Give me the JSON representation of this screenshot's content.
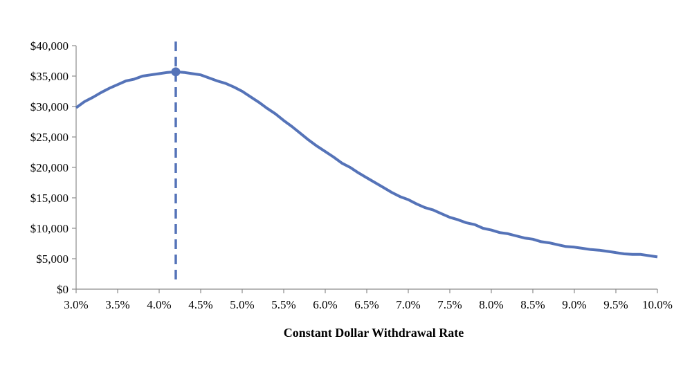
{
  "chart_data": {
    "type": "line",
    "title": "",
    "xlabel": "Constant Dollar Withdrawal Rate",
    "ylabel": "",
    "xlim": [
      3.0,
      10.0
    ],
    "ylim": [
      0,
      40000
    ],
    "grid": false,
    "legend": "none",
    "x_tick_labels": [
      "3.0%",
      "3.5%",
      "4.0%",
      "4.5%",
      "5.0%",
      "5.5%",
      "6.0%",
      "6.5%",
      "7.0%",
      "7.5%",
      "8.0%",
      "8.5%",
      "9.0%",
      "9.5%",
      "10.0%"
    ],
    "x_ticks": [
      3.0,
      3.5,
      4.0,
      4.5,
      5.0,
      5.5,
      6.0,
      6.5,
      7.0,
      7.5,
      8.0,
      8.5,
      9.0,
      9.5,
      10.0
    ],
    "y_tick_labels": [
      "$0",
      "$5,000",
      "$10,000",
      "$15,000",
      "$20,000",
      "$25,000",
      "$30,000",
      "$35,000",
      "$40,000"
    ],
    "y_ticks": [
      0,
      5000,
      10000,
      15000,
      20000,
      25000,
      30000,
      35000,
      40000
    ],
    "series_color": "#5573b8",
    "x": [
      3.0,
      3.1,
      3.2,
      3.3,
      3.4,
      3.5,
      3.6,
      3.7,
      3.8,
      3.9,
      4.0,
      4.1,
      4.2,
      4.3,
      4.4,
      4.5,
      4.6,
      4.7,
      4.8,
      4.9,
      5.0,
      5.1,
      5.2,
      5.3,
      5.4,
      5.5,
      5.6,
      5.7,
      5.8,
      5.9,
      6.0,
      6.1,
      6.2,
      6.3,
      6.4,
      6.5,
      6.6,
      6.7,
      6.8,
      6.9,
      7.0,
      7.1,
      7.2,
      7.3,
      7.4,
      7.5,
      7.6,
      7.7,
      7.8,
      7.9,
      8.0,
      8.1,
      8.2,
      8.3,
      8.4,
      8.5,
      8.6,
      8.7,
      8.8,
      8.9,
      9.0,
      9.1,
      9.2,
      9.3,
      9.4,
      9.5,
      9.6,
      9.7,
      9.8,
      9.9,
      10.0
    ],
    "series": [
      {
        "values": [
          29800,
          30800,
          31500,
          32300,
          33000,
          33600,
          34200,
          34500,
          35000,
          35200,
          35400,
          35600,
          35700,
          35600,
          35400,
          35200,
          34700,
          34200,
          33800,
          33200,
          32500,
          31600,
          30700,
          29700,
          28800,
          27700,
          26700,
          25600,
          24500,
          23500,
          22600,
          21700,
          20700,
          20000,
          19100,
          18300,
          17500,
          16700,
          15900,
          15200,
          14700,
          14000,
          13400,
          13000,
          12400,
          11800,
          11400,
          10900,
          10600,
          10000,
          9700,
          9300,
          9100,
          8750,
          8400,
          8200,
          7800,
          7600,
          7300,
          7000,
          6900,
          6700,
          6500,
          6400,
          6200,
          6000,
          5800,
          5700,
          5700,
          5500,
          5300
        ]
      }
    ],
    "annotations": [
      {
        "type": "vertical-dashed-line",
        "x": 4.2
      },
      {
        "type": "marker",
        "x": 4.2,
        "y": 35700
      }
    ]
  }
}
